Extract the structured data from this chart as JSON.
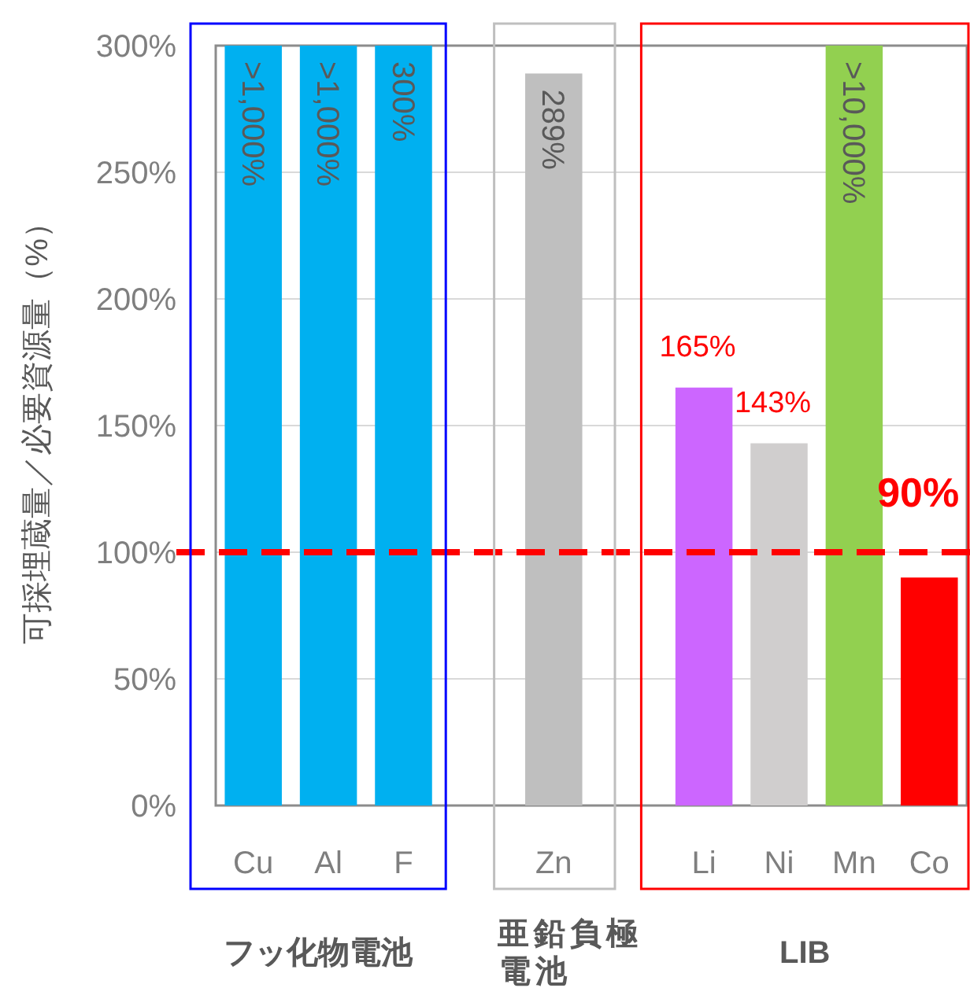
{
  "chart_data": {
    "type": "bar",
    "ylabel": "可採埋蔵量／必要資源量（%）",
    "categories": [
      "Cu",
      "Al",
      "F",
      null,
      "Zn",
      null,
      "Li",
      "Ni",
      "Mn",
      "Co"
    ],
    "values": [
      300,
      300,
      300,
      null,
      289,
      null,
      165,
      143,
      300,
      90
    ],
    "colors": [
      "#00b0f0",
      "#00b0f0",
      "#00b0f0",
      null,
      "#bfbfbf",
      null,
      "#cc66ff",
      "#d0cece",
      "#92d050",
      "#ff0000"
    ],
    "value_labels": [
      ">1,000%",
      ">1,000%",
      "300%",
      null,
      "289%",
      null,
      "165%",
      "143%",
      ">10,000%",
      "90%"
    ],
    "ylim": [
      0,
      300
    ],
    "yticks": [
      {
        "value": 0,
        "label": "0%"
      },
      {
        "value": 50,
        "label": "50%"
      },
      {
        "value": 100,
        "label": "100%"
      },
      {
        "value": 150,
        "label": "150%"
      },
      {
        "value": 200,
        "label": "200%"
      },
      {
        "value": 250,
        "label": "250%"
      },
      {
        "value": 300,
        "label": "300%"
      }
    ],
    "grid": "y",
    "ref_lines": [
      {
        "axis": "y",
        "value": 100,
        "color": "#ff0000",
        "line_style": "dashed"
      }
    ],
    "annotations": [
      "フッ化物電池",
      "亜鉛負極電池",
      "LIB"
    ]
  }
}
